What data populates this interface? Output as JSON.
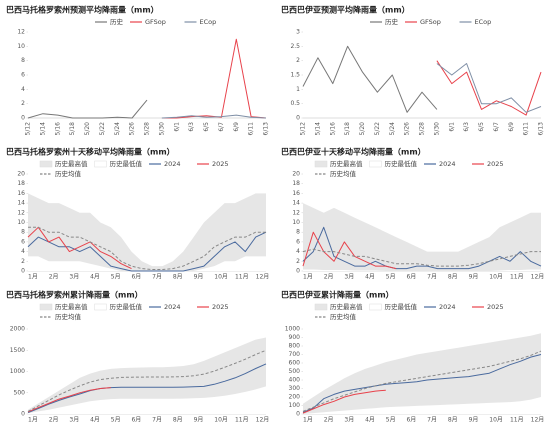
{
  "chart_data": [
    {
      "type": "line",
      "title": "巴西马托格罗索州预测平均降雨量（mm）",
      "categories": [
        "5/12",
        "5/14",
        "5/16",
        "5/18",
        "5/20",
        "5/22",
        "5/24",
        "5/26",
        "5/28",
        "5/30",
        "6/1",
        "6/3",
        "6/5",
        "6/7",
        "6/9",
        "6/11",
        "6/13"
      ],
      "ylim": [
        0,
        12
      ],
      "yticks": [
        0,
        2,
        4,
        6,
        8,
        10,
        12
      ],
      "series": [
        {
          "name": "历史",
          "color": "#777777",
          "values": [
            0,
            0.6,
            0.4,
            0,
            0,
            0,
            0.1,
            0,
            2.5,
            null,
            null,
            null,
            null,
            null,
            null,
            null,
            null
          ]
        },
        {
          "name": "GFSop",
          "color": "#e8424b",
          "values": [
            null,
            null,
            null,
            null,
            null,
            null,
            null,
            null,
            null,
            0,
            0,
            0.2,
            0.3,
            0.1,
            11,
            0.2,
            0
          ]
        },
        {
          "name": "ECop",
          "color": "#7f8fa6",
          "values": [
            null,
            null,
            null,
            null,
            null,
            null,
            null,
            null,
            null,
            0,
            0.1,
            0.3,
            0.1,
            0.2,
            0.4,
            0.1,
            0
          ]
        }
      ]
    },
    {
      "type": "line",
      "title": "巴西巴伊亚预测平均降雨量（mm）",
      "categories": [
        "5/12",
        "5/14",
        "5/16",
        "5/18",
        "5/20",
        "5/22",
        "5/24",
        "5/26",
        "5/28",
        "5/30",
        "6/1",
        "6/3",
        "6/5",
        "6/7",
        "6/9",
        "6/11",
        "6/13"
      ],
      "ylim": [
        0,
        3
      ],
      "yticks": [
        0,
        0.5,
        1,
        1.5,
        2,
        2.5,
        3
      ],
      "series": [
        {
          "name": "历史",
          "color": "#777777",
          "values": [
            1.1,
            2.1,
            1.2,
            2.5,
            1.6,
            0.9,
            1.5,
            0.2,
            0.9,
            0.3,
            null,
            null,
            null,
            null,
            null,
            null,
            null
          ]
        },
        {
          "name": "GFSop",
          "color": "#e8424b",
          "values": [
            null,
            null,
            null,
            null,
            null,
            null,
            null,
            null,
            null,
            2.0,
            1.2,
            1.6,
            0.3,
            0.6,
            0.4,
            0.1,
            1.6
          ]
        },
        {
          "name": "ECop",
          "color": "#7f8fa6",
          "values": [
            null,
            null,
            null,
            null,
            null,
            null,
            null,
            null,
            null,
            1.9,
            1.5,
            1.9,
            0.5,
            0.5,
            0.7,
            0.2,
            0.4
          ]
        }
      ]
    },
    {
      "type": "band-line",
      "title": "巴西马托格罗索州十天移动平均降雨量（mm）",
      "categories": [
        "1月",
        null,
        "2月",
        null,
        "3月",
        null,
        "4月",
        null,
        "5月",
        null,
        "6月",
        null,
        "7月",
        null,
        "8月",
        null,
        "9月",
        null,
        "10月",
        null,
        "11月",
        null,
        "12月",
        null
      ],
      "ylim": [
        0,
        20
      ],
      "yticks": [
        0,
        2,
        4,
        6,
        8,
        10,
        12,
        14,
        16,
        18,
        20
      ],
      "series": [
        {
          "name": "历史最高值",
          "color": "#e6e6e6",
          "fill": true,
          "values": [
            16,
            15,
            14,
            14,
            13,
            12,
            12,
            10,
            9,
            7,
            4,
            2,
            1,
            1,
            2,
            4,
            7,
            10,
            12,
            14,
            14,
            15,
            16,
            16
          ]
        },
        {
          "name": "历史最低值",
          "color": "#ffffff",
          "fill": true,
          "values": [
            3,
            3,
            2,
            2,
            2,
            2,
            1.5,
            1,
            0.5,
            0,
            0,
            0,
            0,
            0,
            0,
            0,
            0,
            0.5,
            1,
            2,
            2,
            3,
            3,
            3
          ]
        },
        {
          "name": "2024",
          "color": "#4a6a9e",
          "values": [
            5,
            7,
            6,
            5,
            5,
            4,
            5,
            3,
            1,
            0.5,
            0,
            0,
            0,
            0,
            0,
            0,
            0.5,
            1,
            3,
            5,
            6,
            4,
            7,
            8
          ]
        },
        {
          "name": "2025",
          "color": "#e8424b",
          "values": [
            7,
            9,
            6,
            7,
            4,
            5,
            6,
            4,
            3,
            1.5,
            0.5,
            null,
            null,
            null,
            null,
            null,
            null,
            null,
            null,
            null,
            null,
            null,
            null,
            null
          ]
        },
        {
          "name": "历史均值",
          "color": "#888888",
          "dash": true,
          "values": [
            9,
            9,
            8,
            8,
            7,
            7,
            6,
            5,
            4,
            2,
            1,
            0.5,
            0.3,
            0.3,
            0.5,
            1,
            2,
            3,
            5,
            6,
            7,
            7,
            8,
            8
          ]
        }
      ]
    },
    {
      "type": "band-line",
      "title": "巴西巴伊亚十天移动平均降雨量（mm）",
      "categories": [
        "1月",
        null,
        "2月",
        null,
        "3月",
        null,
        "4月",
        null,
        "5月",
        null,
        "6月",
        null,
        "7月",
        null,
        "8月",
        null,
        "9月",
        null,
        "10月",
        null,
        "11月",
        null,
        "12月",
        null
      ],
      "ylim": [
        0,
        20
      ],
      "yticks": [
        0,
        2,
        4,
        6,
        8,
        10,
        12,
        14,
        16,
        18,
        20
      ],
      "series": [
        {
          "name": "历史最高值",
          "color": "#e6e6e6",
          "fill": true,
          "values": [
            14,
            13,
            12,
            13,
            12,
            11,
            10,
            9,
            8,
            7,
            6,
            5,
            4,
            4,
            4,
            4,
            5,
            6,
            7,
            9,
            10,
            11,
            12,
            12
          ]
        },
        {
          "name": "历史最低值",
          "color": "#ffffff",
          "fill": true,
          "values": [
            0.3,
            0.3,
            0.2,
            0.2,
            0.2,
            0.1,
            0.1,
            0.1,
            0,
            0,
            0,
            0,
            0,
            0,
            0,
            0,
            0,
            0,
            0,
            0.1,
            0.2,
            0.2,
            0.3,
            0.3
          ]
        },
        {
          "name": "2024",
          "color": "#4a6a9e",
          "values": [
            2,
            4,
            9,
            3,
            2,
            1,
            1,
            2,
            1,
            0.5,
            0.5,
            1,
            1,
            0.5,
            0.5,
            0.5,
            0.5,
            1,
            2,
            3,
            2,
            4,
            2,
            1
          ]
        },
        {
          "name": "2025",
          "color": "#e8424b",
          "values": [
            1,
            8,
            4,
            2,
            6,
            3,
            2,
            1,
            1,
            0.5,
            null,
            null,
            null,
            null,
            null,
            null,
            null,
            null,
            null,
            null,
            null,
            null,
            null,
            null
          ]
        },
        {
          "name": "历史均值",
          "color": "#888888",
          "dash": true,
          "values": [
            4,
            4.5,
            4,
            4,
            3.5,
            3,
            3,
            2.5,
            2,
            1.5,
            1.5,
            1.5,
            1.2,
            1,
            1,
            1,
            1.2,
            1.5,
            2,
            2.5,
            3,
            3.5,
            4,
            4
          ]
        }
      ]
    },
    {
      "type": "band-line",
      "title": "巴西马托格罗索州累计降雨量（mm）",
      "categories": [
        "1月",
        null,
        "2月",
        null,
        "3月",
        null,
        "4月",
        null,
        "5月",
        null,
        "6月",
        null,
        "7月",
        null,
        "8月",
        null,
        "9月",
        null,
        "10月",
        null,
        "11月",
        null,
        "12月",
        null
      ],
      "ylim": [
        0,
        2000
      ],
      "yticks": [
        0,
        500,
        1000,
        1500,
        2000
      ],
      "series": [
        {
          "name": "历史最高值",
          "color": "#e6e6e6",
          "fill": true,
          "values": [
            100,
            250,
            400,
            550,
            700,
            850,
            950,
            1020,
            1060,
            1080,
            1090,
            1095,
            1100,
            1100,
            1110,
            1130,
            1170,
            1250,
            1350,
            1450,
            1550,
            1650,
            1750,
            1800
          ]
        },
        {
          "name": "历史最低值",
          "color": "#ffffff",
          "fill": true,
          "values": [
            20,
            60,
            100,
            150,
            200,
            250,
            300,
            330,
            350,
            360,
            360,
            360,
            360,
            360,
            360,
            362,
            370,
            380,
            400,
            430,
            470,
            520,
            580,
            650
          ]
        },
        {
          "name": "2024",
          "color": "#4a6a9e",
          "values": [
            30,
            130,
            230,
            320,
            400,
            470,
            550,
            600,
            620,
            630,
            630,
            630,
            630,
            630,
            630,
            632,
            640,
            650,
            700,
            770,
            850,
            950,
            1070,
            1180
          ]
        },
        {
          "name": "2025",
          "color": "#e8424b",
          "values": [
            50,
            150,
            250,
            350,
            420,
            500,
            560,
            600,
            620,
            null,
            null,
            null,
            null,
            null,
            null,
            null,
            null,
            null,
            null,
            null,
            null,
            null,
            null,
            null
          ]
        },
        {
          "name": "历史均值",
          "color": "#888888",
          "dash": true,
          "values": [
            60,
            190,
            320,
            450,
            560,
            660,
            750,
            810,
            840,
            860,
            865,
            868,
            870,
            870,
            872,
            880,
            900,
            940,
            1010,
            1100,
            1190,
            1290,
            1400,
            1500
          ]
        }
      ]
    },
    {
      "type": "band-line",
      "title": "巴西巴伊亚累计降雨量（mm）",
      "categories": [
        "1月",
        null,
        "2月",
        null,
        "3月",
        null,
        "4月",
        null,
        "5月",
        null,
        "6月",
        null,
        "7月",
        null,
        "8月",
        null,
        "9月",
        null,
        "10月",
        null,
        "11月",
        null,
        "12月",
        null
      ],
      "ylim": [
        0,
        1000
      ],
      "yticks": [
        0,
        100,
        200,
        300,
        400,
        500,
        600,
        700,
        800,
        900,
        1000
      ],
      "series": [
        {
          "name": "历史最高值",
          "color": "#e6e6e6",
          "fill": true,
          "values": [
            120,
            200,
            280,
            350,
            420,
            480,
            530,
            570,
            610,
            640,
            670,
            700,
            720,
            740,
            760,
            780,
            800,
            820,
            840,
            860,
            880,
            900,
            920,
            950
          ]
        },
        {
          "name": "历史最低值",
          "color": "#ffffff",
          "fill": true,
          "values": [
            0,
            10,
            20,
            30,
            40,
            50,
            60,
            70,
            80,
            85,
            90,
            95,
            100,
            105,
            110,
            115,
            120,
            125,
            130,
            135,
            140,
            150,
            170,
            200
          ]
        },
        {
          "name": "2024",
          "color": "#4a6a9e",
          "values": [
            20,
            70,
            180,
            230,
            270,
            290,
            310,
            330,
            350,
            360,
            370,
            380,
            400,
            410,
            420,
            430,
            440,
            460,
            480,
            530,
            580,
            620,
            670,
            700
          ]
        },
        {
          "name": "2025",
          "color": "#e8424b",
          "values": [
            10,
            60,
            110,
            150,
            200,
            230,
            250,
            270,
            280,
            null,
            null,
            null,
            null,
            null,
            null,
            null,
            null,
            null,
            null,
            null,
            null,
            null,
            null,
            null
          ]
        },
        {
          "name": "历史均值",
          "color": "#888888",
          "dash": true,
          "values": [
            30,
            80,
            130,
            180,
            220,
            260,
            300,
            330,
            360,
            380,
            400,
            420,
            440,
            460,
            480,
            500,
            520,
            540,
            560,
            590,
            620,
            650,
            690,
            740
          ]
        }
      ]
    }
  ]
}
